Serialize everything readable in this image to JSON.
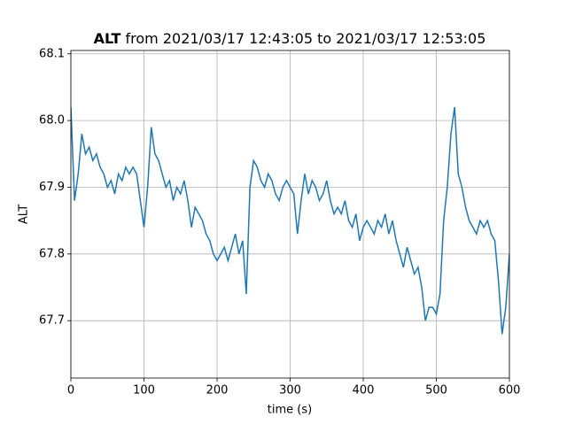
{
  "chart_data": {
    "type": "line",
    "title_bold": "ALT",
    "title": "from 2021/03/17 12:43:05 to 2021/03/17 12:53:05",
    "x_label": "time (s)",
    "y_label": "ALT",
    "x": [
      0,
      5,
      10,
      15,
      20,
      25,
      30,
      35,
      40,
      45,
      50,
      55,
      60,
      65,
      70,
      75,
      80,
      85,
      90,
      95,
      100,
      105,
      110,
      115,
      120,
      125,
      130,
      135,
      140,
      145,
      150,
      155,
      160,
      165,
      170,
      175,
      180,
      185,
      190,
      195,
      200,
      205,
      210,
      215,
      220,
      225,
      230,
      235,
      240,
      245,
      250,
      255,
      260,
      265,
      270,
      275,
      280,
      285,
      290,
      295,
      300,
      305,
      310,
      315,
      320,
      325,
      330,
      335,
      340,
      345,
      350,
      355,
      360,
      365,
      370,
      375,
      380,
      385,
      390,
      395,
      400,
      405,
      410,
      415,
      420,
      425,
      430,
      435,
      440,
      445,
      450,
      455,
      460,
      465,
      470,
      475,
      480,
      485,
      490,
      495,
      500,
      505,
      510,
      515,
      520,
      525,
      530,
      535,
      540,
      545,
      550,
      555,
      560,
      565,
      570,
      575,
      580,
      585,
      590,
      595,
      600
    ],
    "series": [
      {
        "name": "ALT",
        "color": "#1f77b4",
        "values": [
          68.02,
          67.88,
          67.92,
          67.98,
          67.95,
          67.96,
          67.94,
          67.95,
          67.93,
          67.92,
          67.9,
          67.91,
          67.89,
          67.92,
          67.91,
          67.93,
          67.92,
          67.93,
          67.92,
          67.88,
          67.84,
          67.9,
          67.99,
          67.95,
          67.94,
          67.92,
          67.9,
          67.91,
          67.88,
          67.9,
          67.89,
          67.91,
          67.88,
          67.84,
          67.87,
          67.86,
          67.85,
          67.83,
          67.82,
          67.8,
          67.79,
          67.8,
          67.81,
          67.79,
          67.81,
          67.83,
          67.8,
          67.82,
          67.74,
          67.9,
          67.94,
          67.93,
          67.91,
          67.9,
          67.92,
          67.91,
          67.89,
          67.88,
          67.9,
          67.91,
          67.9,
          67.89,
          67.83,
          67.88,
          67.92,
          67.89,
          67.91,
          67.9,
          67.88,
          67.89,
          67.91,
          67.88,
          67.86,
          67.87,
          67.86,
          67.88,
          67.85,
          67.84,
          67.86,
          67.82,
          67.84,
          67.85,
          67.84,
          67.83,
          67.85,
          67.84,
          67.86,
          67.83,
          67.85,
          67.82,
          67.8,
          67.78,
          67.81,
          67.79,
          67.77,
          67.78,
          67.75,
          67.7,
          67.72,
          67.72,
          67.71,
          67.74,
          67.85,
          67.9,
          67.98,
          68.02,
          67.92,
          67.9,
          67.87,
          67.85,
          67.84,
          67.83,
          67.85,
          67.84,
          67.85,
          67.83,
          67.82,
          67.76,
          67.68,
          67.72,
          67.8
        ]
      }
    ],
    "xlim": [
      0,
      600
    ],
    "xticks": [
      0,
      100,
      200,
      300,
      400,
      500,
      600
    ],
    "ylim": [
      67.614,
      68.105
    ],
    "yticks": [
      67.7,
      67.8,
      67.9,
      {
        "value": 68,
        "label": "68.0"
      },
      68.1
    ],
    "grid": true
  }
}
